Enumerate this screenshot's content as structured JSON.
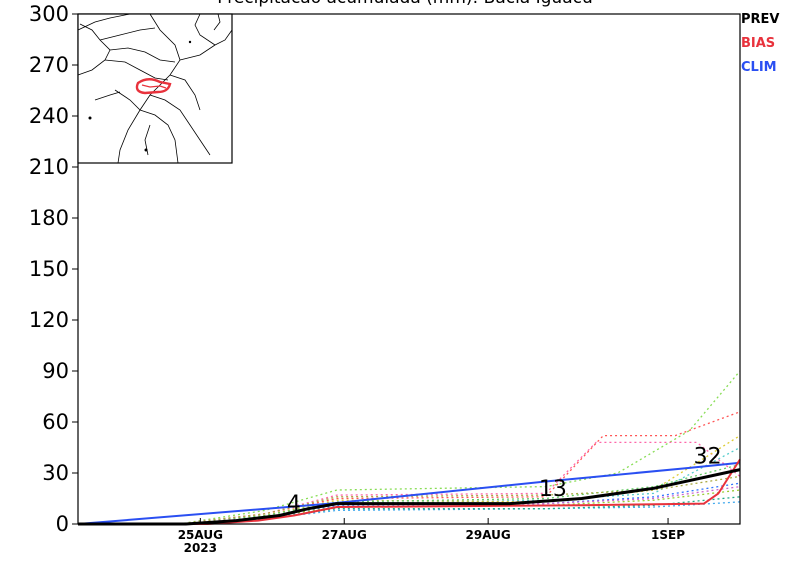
{
  "chart_data": {
    "type": "line",
    "title": "Precipitacao acumulada (mm): Bacia Iguacu",
    "ylim": [
      0,
      300
    ],
    "yticks": [
      0,
      30,
      60,
      90,
      120,
      150,
      180,
      210,
      240,
      270,
      300
    ],
    "ytick_labels": [
      "0",
      "30",
      "60",
      "90",
      "120",
      "150",
      "180",
      "210",
      "240",
      "270",
      "300"
    ],
    "xlim": [
      0,
      9.2
    ],
    "xticks": [
      {
        "x": 1.7,
        "label": "25AUG",
        "sublabel": "2023"
      },
      {
        "x": 3.7,
        "label": "27AUG",
        "sublabel": ""
      },
      {
        "x": 5.7,
        "label": "29AUG",
        "sublabel": ""
      },
      {
        "x": 8.2,
        "label": "1SEP",
        "sublabel": ""
      }
    ],
    "legend": {
      "placement": "top-right",
      "entries": [
        {
          "label": "PREV",
          "color": "#000000"
        },
        {
          "label": "BIAS",
          "color": "#e8323c"
        },
        {
          "label": "CLIM",
          "color": "#2a4ff2"
        }
      ]
    },
    "series": [
      {
        "name": "CLIM",
        "color": "#2a4ff2",
        "width": 2,
        "x": [
          0,
          3.5,
          6.5,
          8.5,
          9.2
        ],
        "y": [
          0,
          12,
          25,
          33,
          36
        ]
      },
      {
        "name": "BIAS",
        "color": "#e8323c",
        "width": 2,
        "x": [
          0,
          1.8,
          2.5,
          3.0,
          3.6,
          7.0,
          8.7,
          8.9,
          9.2
        ],
        "y": [
          0,
          0,
          2,
          5,
          10,
          11,
          12,
          18,
          38
        ]
      },
      {
        "name": "PREV",
        "color": "#000000",
        "width": 3,
        "x": [
          0,
          1.5,
          2.2,
          2.8,
          3.2,
          3.6,
          5.0,
          6.0,
          7.0,
          8.0,
          9.2
        ],
        "y": [
          0,
          0,
          2,
          5,
          9,
          12,
          12,
          12,
          15,
          21,
          32
        ]
      }
    ],
    "members": [
      {
        "color": "#88dd55",
        "x": [
          1.4,
          2.6,
          3.6,
          6.5,
          7.5,
          8.5,
          9.2
        ],
        "y": [
          0,
          8,
          20,
          22,
          30,
          55,
          90
        ]
      },
      {
        "color": "#ff66aa",
        "x": [
          1.4,
          2.6,
          3.6,
          6.5,
          7.2,
          8.0,
          8.6,
          9.2
        ],
        "y": [
          0,
          6,
          17,
          18,
          48,
          48,
          48,
          28
        ]
      },
      {
        "color": "#ff5555",
        "x": [
          1.4,
          2.6,
          3.6,
          6.5,
          7.3,
          8.3,
          9.2
        ],
        "y": [
          0,
          6,
          15,
          16,
          52,
          52,
          66
        ]
      },
      {
        "color": "#55cccc",
        "x": [
          1.4,
          2.6,
          3.6,
          6.5,
          8.0,
          9.2
        ],
        "y": [
          0,
          4,
          12,
          14,
          18,
          45
        ]
      },
      {
        "color": "#ddcc33",
        "x": [
          1.4,
          2.6,
          3.6,
          6.5,
          8.0,
          9.2
        ],
        "y": [
          0,
          5,
          14,
          13,
          20,
          52
        ]
      },
      {
        "color": "#3377ff",
        "x": [
          1.4,
          2.6,
          3.6,
          6.5,
          8.0,
          9.2
        ],
        "y": [
          0,
          3,
          11,
          12,
          16,
          24
        ]
      },
      {
        "color": "#66cc66",
        "x": [
          1.4,
          2.6,
          3.6,
          6.5,
          8.0,
          9.2
        ],
        "y": [
          0,
          5,
          13,
          15,
          22,
          35
        ]
      },
      {
        "color": "#aaaa44",
        "x": [
          1.4,
          2.6,
          3.6,
          6.5,
          8.0,
          9.2
        ],
        "y": [
          0,
          6,
          16,
          17,
          20,
          28
        ]
      },
      {
        "color": "#44aaee",
        "x": [
          1.4,
          2.6,
          3.6,
          6.5,
          8.0,
          9.2
        ],
        "y": [
          0,
          3,
          8,
          9,
          10,
          13
        ]
      },
      {
        "color": "#99cc33",
        "x": [
          1.4,
          2.6,
          3.6,
          6.5,
          8.0,
          9.2
        ],
        "y": [
          0,
          4,
          10,
          11,
          14,
          20
        ]
      },
      {
        "color": "#cc66cc",
        "x": [
          1.4,
          2.6,
          3.6,
          6.5,
          8.0,
          9.2
        ],
        "y": [
          0,
          4,
          12,
          12,
          15,
          22
        ]
      },
      {
        "color": "#22aa88",
        "x": [
          1.4,
          2.6,
          3.6,
          6.5,
          8.0,
          9.2
        ],
        "y": [
          0,
          3,
          9,
          9,
          11,
          16
        ]
      }
    ],
    "annotations": [
      {
        "x": 3.0,
        "y": 4,
        "text": "4"
      },
      {
        "x": 6.6,
        "y": 13,
        "text": "13"
      },
      {
        "x": 8.75,
        "y": 32,
        "text": "32"
      }
    ]
  }
}
